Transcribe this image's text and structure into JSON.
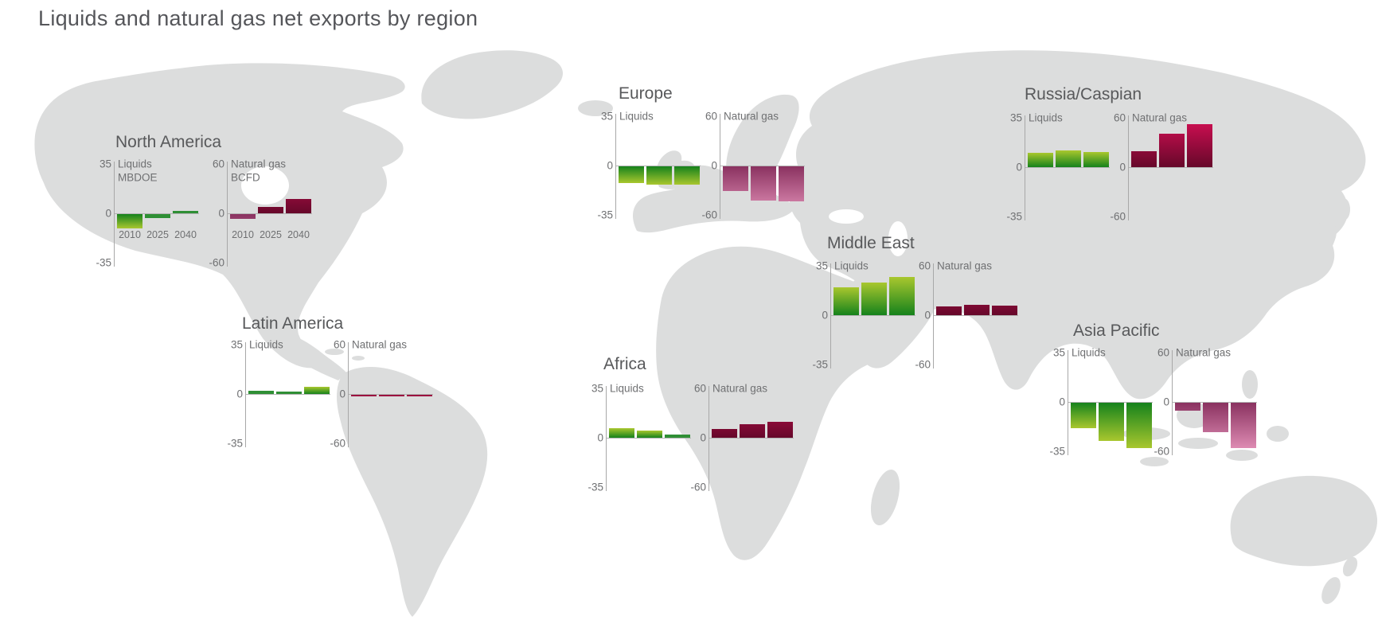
{
  "chart_data": {
    "type": "bar",
    "title": "Liquids and natural gas net exports by region",
    "years": [
      "2010",
      "2025",
      "2040"
    ],
    "liquids_axis": {
      "label": "Liquids",
      "unit": "MBDOE",
      "max": 35,
      "min": -35,
      "tick_top": "35",
      "tick_zero": "0",
      "tick_bottom": "-35"
    },
    "gas_axis": {
      "label": "Natural gas",
      "unit": "BCFD",
      "max": 60,
      "min": -60,
      "tick_top": "60",
      "tick_zero": "0",
      "tick_bottom": "-60"
    },
    "regions": [
      {
        "name": "North America",
        "show_units": true,
        "show_years": true,
        "liquids": [
          -10,
          -3,
          1.5
        ],
        "natural_gas": [
          -6,
          8,
          17
        ]
      },
      {
        "name": "Latin America",
        "show_units": false,
        "show_years": false,
        "liquids": [
          2,
          1.5,
          5
        ],
        "natural_gas": [
          -0.5,
          -0.5,
          -0.5
        ]
      },
      {
        "name": "Europe",
        "show_units": false,
        "show_years": false,
        "liquids": [
          -12,
          -13,
          -13
        ],
        "natural_gas": [
          -30,
          -42,
          -43
        ]
      },
      {
        "name": "Africa",
        "show_units": false,
        "show_years": false,
        "liquids": [
          7,
          5,
          2.5
        ],
        "natural_gas": [
          11,
          16,
          19
        ]
      },
      {
        "name": "Middle East",
        "show_units": false,
        "show_years": false,
        "liquids": [
          20,
          23,
          27
        ],
        "natural_gas": [
          11,
          13,
          12
        ]
      },
      {
        "name": "Russia/Caspian",
        "show_units": false,
        "show_years": false,
        "liquids": [
          10,
          12,
          11
        ],
        "natural_gas": [
          19,
          41,
          52
        ]
      },
      {
        "name": "Asia Pacific",
        "show_units": false,
        "show_years": false,
        "liquids": [
          -18,
          -27,
          -32
        ],
        "natural_gas": [
          -10,
          -36,
          -55
        ]
      }
    ],
    "legend_position": "none",
    "grid": false
  },
  "colors": {
    "background": "#ffffff",
    "map": "#dcdddd",
    "title_text": "#55565a",
    "region_title_text": "#58595b",
    "label_text": "#6f7072",
    "axis": "#a8a8a8",
    "zero_line": "#b3b3b3",
    "green_zero": "#15821c",
    "green_tip": "#a9c72e",
    "green_flat": "#2f8f35",
    "red_zero": "#66082a",
    "red_tip": "#d60f55",
    "mauve_zero": "#8a3260",
    "mauve_tip": "#e593ba",
    "red_flat": "#9c1240"
  }
}
